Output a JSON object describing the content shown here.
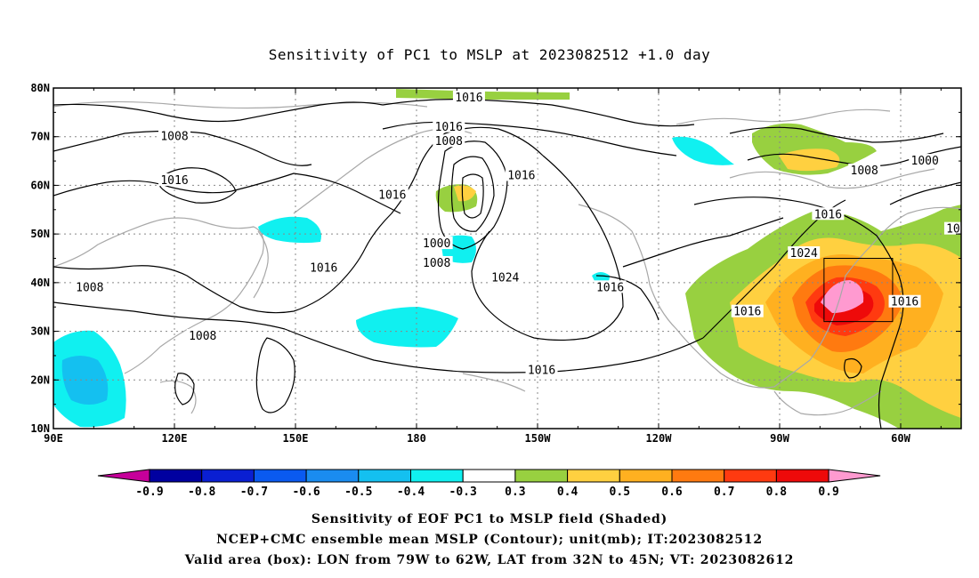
{
  "chart_data": {
    "type": "heatmap",
    "title": "Sensitivity of PC1 to MSLP at 2023082512 +1.0 day",
    "x_ticks": [
      "90E",
      "120E",
      "150E",
      "180",
      "150W",
      "120W",
      "90W",
      "60W"
    ],
    "x_tick_lons": [
      90,
      120,
      150,
      180,
      210,
      240,
      270,
      300
    ],
    "y_ticks": [
      "80N",
      "70N",
      "60N",
      "50N",
      "40N",
      "30N",
      "20N",
      "10N"
    ],
    "y_tick_lats": [
      80,
      70,
      60,
      50,
      40,
      30,
      20,
      10
    ],
    "xlim": [
      90,
      315
    ],
    "ylim": [
      10,
      80
    ],
    "grid": true,
    "colorbar": {
      "labels": [
        "-0.9",
        "-0.8",
        "-0.7",
        "-0.6",
        "-0.5",
        "-0.4",
        "-0.3",
        "0.3",
        "0.4",
        "0.5",
        "0.6",
        "0.7",
        "0.8",
        "0.9"
      ],
      "colors": [
        "#c6009a",
        "#0000a0",
        "#0a1fd2",
        "#0a5af0",
        "#1a8cf0",
        "#14c0f0",
        "#10f0f0",
        "#ffffff",
        "#98d040",
        "#ffd040",
        "#ffb020",
        "#ff7a10",
        "#ff3a10",
        "#ee0a0a",
        "#ff9ad0"
      ]
    },
    "contour_labels": [
      {
        "text": "1008",
        "lon": 120,
        "lat": 70
      },
      {
        "text": "1016",
        "lon": 120,
        "lat": 61
      },
      {
        "text": "1008",
        "lon": 99,
        "lat": 39
      },
      {
        "text": "1008",
        "lon": 127,
        "lat": 29
      },
      {
        "text": "1016",
        "lon": 157,
        "lat": 43
      },
      {
        "text": "1016",
        "lon": 174,
        "lat": 58
      },
      {
        "text": "1016",
        "lon": 193,
        "lat": 78
      },
      {
        "text": "1016",
        "lon": 188,
        "lat": 72
      },
      {
        "text": "1008",
        "lon": 188,
        "lat": 69
      },
      {
        "text": "1000",
        "lon": 185,
        "lat": 48
      },
      {
        "text": "1008",
        "lon": 185,
        "lat": 44
      },
      {
        "text": "1016",
        "lon": 206,
        "lat": 62
      },
      {
        "text": "1024",
        "lon": 202,
        "lat": 41
      },
      {
        "text": "1016",
        "lon": 228,
        "lat": 39
      },
      {
        "text": "1016",
        "lon": 211,
        "lat": 22
      },
      {
        "text": "1016",
        "lon": 262,
        "lat": 34
      },
      {
        "text": "1016",
        "lon": 282,
        "lat": 54
      },
      {
        "text": "1024",
        "lon": 276,
        "lat": 46
      },
      {
        "text": "1008",
        "lon": 291,
        "lat": 63
      },
      {
        "text": "1000",
        "lon": 306,
        "lat": 65
      },
      {
        "text": "1016",
        "lon": 301,
        "lat": 36
      },
      {
        "text": "10",
        "lon": 313,
        "lat": 51
      }
    ],
    "valid_box": {
      "lon_min": 281,
      "lon_max": 298,
      "lat_min": 32,
      "lat_max": 45
    }
  },
  "captions": {
    "line1": "Sensitivity of EOF PC1 to MSLP field (Shaded)",
    "line2": "NCEP+CMC ensemble mean MSLP (Contour); unit(mb); IT:2023082512",
    "line3": "Valid area (box): LON from 79W to 62W, LAT from 32N to 45N; VT: 2023082612"
  }
}
